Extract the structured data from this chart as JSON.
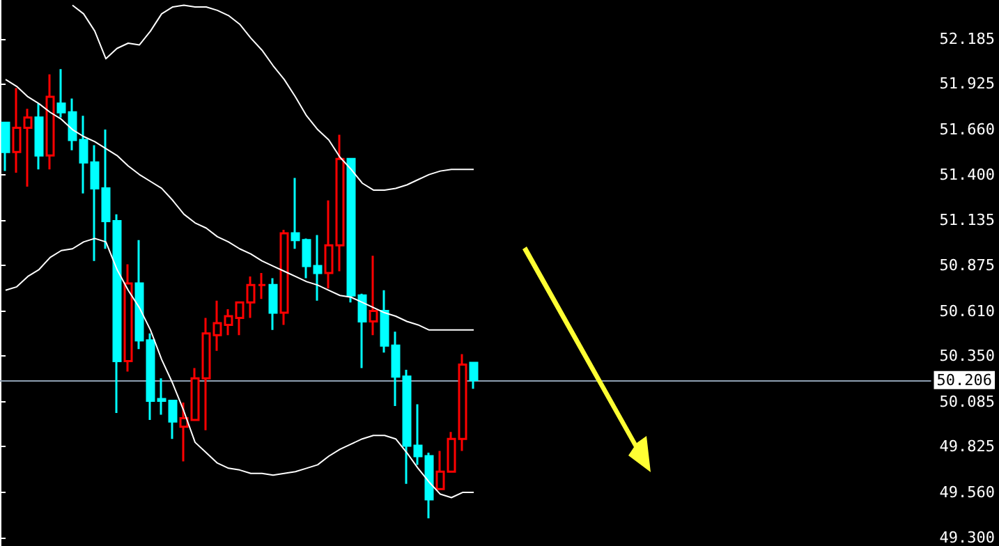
{
  "chart_data": {
    "type": "candlestick",
    "categories": [
      null,
      null,
      null,
      null,
      null,
      null,
      null,
      null,
      null,
      null,
      null,
      null,
      null,
      null,
      null,
      null,
      null,
      null,
      null,
      null,
      null,
      null,
      null,
      null,
      null,
      null,
      null,
      null,
      null,
      null,
      null,
      null,
      null,
      null,
      null,
      null,
      null,
      null,
      null,
      null,
      null,
      null,
      null
    ],
    "ohlc": [
      [
        51.7,
        51.7,
        51.42,
        51.53
      ],
      [
        51.53,
        51.9,
        51.41,
        51.67
      ],
      [
        51.67,
        51.78,
        51.33,
        51.73
      ],
      [
        51.73,
        51.81,
        51.43,
        51.51
      ],
      [
        51.51,
        51.98,
        51.43,
        51.85
      ],
      [
        51.81,
        52.01,
        51.73,
        51.76
      ],
      [
        51.76,
        51.84,
        51.54,
        51.6
      ],
      [
        51.6,
        51.74,
        51.29,
        51.47
      ],
      [
        51.47,
        51.57,
        50.9,
        51.32
      ],
      [
        51.32,
        51.66,
        50.97,
        51.13
      ],
      [
        51.13,
        51.17,
        50.02,
        50.32
      ],
      [
        50.32,
        50.88,
        50.26,
        50.77
      ],
      [
        50.77,
        51.02,
        50.39,
        50.44
      ],
      [
        50.44,
        50.48,
        49.98,
        50.09
      ],
      [
        50.1,
        50.22,
        50.01,
        50.09
      ],
      [
        50.09,
        50.09,
        49.87,
        49.97
      ],
      [
        49.94,
        50.08,
        49.74,
        49.99
      ],
      [
        49.98,
        50.28,
        49.98,
        50.22
      ],
      [
        50.22,
        50.57,
        49.92,
        50.48
      ],
      [
        50.47,
        50.67,
        50.38,
        50.54
      ],
      [
        50.53,
        50.62,
        50.47,
        50.58
      ],
      [
        50.57,
        50.66,
        50.47,
        50.66
      ],
      [
        50.66,
        50.81,
        50.57,
        50.76
      ],
      [
        50.76,
        50.83,
        50.68,
        50.76
      ],
      [
        50.76,
        50.8,
        50.5,
        50.6
      ],
      [
        50.6,
        51.08,
        50.53,
        51.06
      ],
      [
        51.06,
        51.38,
        50.97,
        51.02
      ],
      [
        51.02,
        51.03,
        50.8,
        50.87
      ],
      [
        50.87,
        51.05,
        50.67,
        50.83
      ],
      [
        50.83,
        51.25,
        50.74,
        50.99
      ],
      [
        50.99,
        51.63,
        50.84,
        51.49
      ],
      [
        51.49,
        51.49,
        50.66,
        50.7
      ],
      [
        50.7,
        50.71,
        50.28,
        50.55
      ],
      [
        50.55,
        50.93,
        50.47,
        50.61
      ],
      [
        50.61,
        50.73,
        50.37,
        50.41
      ],
      [
        50.41,
        50.49,
        50.06,
        50.23
      ],
      [
        50.23,
        50.27,
        49.61,
        49.83
      ],
      [
        49.83,
        50.07,
        49.72,
        49.77
      ],
      [
        49.77,
        49.79,
        49.41,
        49.52
      ],
      [
        49.58,
        49.8,
        49.58,
        49.68
      ],
      [
        49.68,
        49.91,
        49.68,
        49.87
      ],
      [
        49.87,
        50.36,
        49.8,
        50.3
      ],
      [
        50.31,
        50.31,
        50.16,
        50.21
      ]
    ],
    "colors": [
      "#00ffff",
      "#ff0000",
      "#ff0000",
      "#00ffff",
      "#ff0000",
      "#00ffff",
      "#00ffff",
      "#00ffff",
      "#00ffff",
      "#00ffff",
      "#00ffff",
      "#ff0000",
      "#00ffff",
      "#00ffff",
      "#00ffff",
      "#00ffff",
      "#ff0000",
      "#ff0000",
      "#ff0000",
      "#ff0000",
      "#ff0000",
      "#ff0000",
      "#ff0000",
      "#ff0000",
      "#00ffff",
      "#ff0000",
      "#00ffff",
      "#00ffff",
      "#00ffff",
      "#ff0000",
      "#ff0000",
      "#00ffff",
      "#00ffff",
      "#ff0000",
      "#00ffff",
      "#00ffff",
      "#00ffff",
      "#00ffff",
      "#00ffff",
      "#ff0000",
      "#ff0000",
      "#ff0000",
      "#00ffff"
    ],
    "series": [
      {
        "type": "line",
        "color": "#ffffff",
        "values": [
          null,
          null,
          null,
          null,
          null,
          null,
          52.38,
          52.33,
          52.23,
          52.07,
          52.13,
          52.16,
          52.15,
          52.23,
          52.33,
          52.37,
          52.38,
          52.37,
          52.37,
          52.35,
          52.32,
          52.27,
          52.19,
          52.12,
          52.03,
          51.95,
          51.85,
          51.74,
          51.66,
          51.6,
          51.5,
          51.43,
          51.35,
          51.31,
          51.31,
          51.32,
          51.34,
          51.37,
          51.4,
          51.42,
          51.43,
          51.43,
          51.43
        ]
      },
      {
        "type": "line",
        "color": "#ffffff",
        "values": [
          51.95,
          51.91,
          51.85,
          51.81,
          51.76,
          51.72,
          51.66,
          51.62,
          51.59,
          51.55,
          51.51,
          51.45,
          51.4,
          51.36,
          51.32,
          51.25,
          51.17,
          51.12,
          51.09,
          51.04,
          51.01,
          50.97,
          50.94,
          50.9,
          50.87,
          50.84,
          50.81,
          50.78,
          50.76,
          50.73,
          50.7,
          50.69,
          50.66,
          50.63,
          50.6,
          50.58,
          50.55,
          50.53,
          50.5,
          50.5,
          50.5,
          50.5,
          50.5
        ]
      },
      {
        "type": "line",
        "color": "#ffffff",
        "values": [
          50.73,
          50.75,
          50.81,
          50.85,
          50.92,
          50.96,
          50.97,
          51.01,
          51.03,
          51.01,
          50.85,
          50.73,
          50.63,
          50.5,
          50.33,
          50.19,
          50.03,
          49.85,
          49.79,
          49.73,
          49.7,
          49.69,
          49.67,
          49.67,
          49.66,
          49.67,
          49.68,
          49.7,
          49.72,
          49.77,
          49.81,
          49.84,
          49.87,
          49.89,
          49.89,
          49.87,
          49.79,
          49.7,
          49.62,
          49.55,
          49.53,
          49.56,
          49.56
        ]
      }
    ],
    "ylim": [
      49.25,
      52.41
    ],
    "yticks": [
      {
        "value": 49.3,
        "label": "49.300"
      },
      {
        "value": 49.56,
        "label": "49.560"
      },
      49.825,
      50.085,
      {
        "value": 50.35,
        "label": "50.350"
      },
      {
        "value": 50.61,
        "label": "50.610"
      },
      50.875,
      51.135,
      {
        "value": 51.4,
        "label": "51.400"
      },
      {
        "value": 51.66,
        "label": "51.660"
      },
      51.925,
      52.185
    ],
    "ref_lines": [
      {
        "axis": "y",
        "value": 50.206,
        "label": "50.206",
        "color": "#8fa0b3"
      }
    ],
    "tick_labels": "y",
    "grid": false
  }
}
